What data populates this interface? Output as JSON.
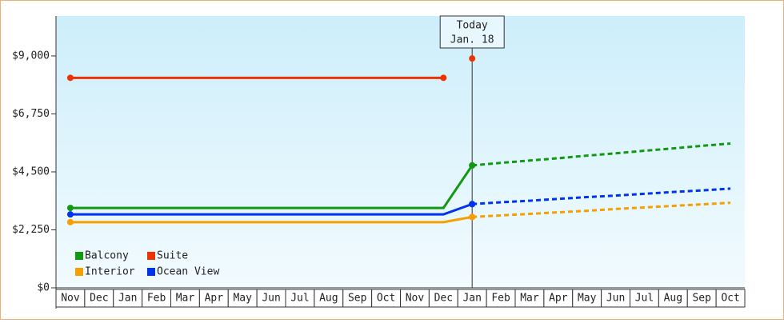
{
  "chart_data": {
    "type": "line",
    "categories": [
      "Nov",
      "Dec",
      "Jan",
      "Feb",
      "Mar",
      "Apr",
      "May",
      "Jun",
      "Jul",
      "Aug",
      "Sep",
      "Oct",
      "Nov",
      "Dec",
      "Jan",
      "Feb",
      "Mar",
      "Apr",
      "May",
      "Jun",
      "Jul",
      "Aug",
      "Sep",
      "Oct"
    ],
    "ylim": [
      0,
      10550
    ],
    "yticks": [
      {
        "value": 0,
        "label": "$0"
      },
      {
        "value": 2250,
        "label": "$2,250"
      },
      {
        "value": 4500,
        "label": "$4,500"
      },
      {
        "value": 6750,
        "label": "$6,750"
      },
      {
        "value": 9000,
        "label": "$9,000"
      }
    ],
    "annotation": [
      "Today",
      "Jan. 18"
    ],
    "legend": "bottom-left",
    "series": [
      {
        "name": "Balcony",
        "color": "#119911",
        "values": [
          3100,
          3100,
          3100,
          3100,
          3100,
          3100,
          3100,
          3100,
          3100,
          3100,
          3100,
          3100,
          3100,
          3100,
          4750,
          null,
          null,
          null,
          null,
          null,
          null,
          null,
          null,
          null
        ],
        "forecast": [
          null,
          null,
          null,
          null,
          null,
          null,
          null,
          null,
          null,
          null,
          null,
          null,
          null,
          null,
          4750,
          4850,
          4940,
          5030,
          5130,
          5220,
          5320,
          5410,
          5510,
          5600
        ]
      },
      {
        "name": "Suite",
        "color": "#ee3300",
        "values": [
          8150,
          8150,
          8150,
          8150,
          8150,
          8150,
          8150,
          8150,
          8150,
          8150,
          8150,
          8150,
          8150,
          8150,
          null,
          null,
          null,
          null,
          null,
          null,
          null,
          null,
          null,
          null
        ],
        "forecast": [
          null,
          null,
          null,
          null,
          null,
          null,
          null,
          null,
          null,
          null,
          null,
          null,
          null,
          null,
          8900,
          null,
          null,
          null,
          null,
          null,
          null,
          null,
          null,
          null
        ]
      },
      {
        "name": "Interior",
        "color": "#f5a000",
        "values": [
          2550,
          2550,
          2550,
          2550,
          2550,
          2550,
          2550,
          2550,
          2550,
          2550,
          2550,
          2550,
          2550,
          2550,
          2750,
          null,
          null,
          null,
          null,
          null,
          null,
          null,
          null,
          null
        ],
        "forecast": [
          null,
          null,
          null,
          null,
          null,
          null,
          null,
          null,
          null,
          null,
          null,
          null,
          null,
          null,
          2750,
          2810,
          2870,
          2930,
          2990,
          3060,
          3120,
          3180,
          3240,
          3300
        ]
      },
      {
        "name": "Ocean View",
        "color": "#0033ee",
        "values": [
          2850,
          2850,
          2850,
          2850,
          2850,
          2850,
          2850,
          2850,
          2850,
          2850,
          2850,
          2850,
          2850,
          2850,
          3250,
          null,
          null,
          null,
          null,
          null,
          null,
          null,
          null,
          null
        ],
        "forecast": [
          null,
          null,
          null,
          null,
          null,
          null,
          null,
          null,
          null,
          null,
          null,
          null,
          null,
          null,
          3250,
          3320,
          3380,
          3450,
          3520,
          3580,
          3650,
          3720,
          3780,
          3850
        ]
      }
    ]
  }
}
